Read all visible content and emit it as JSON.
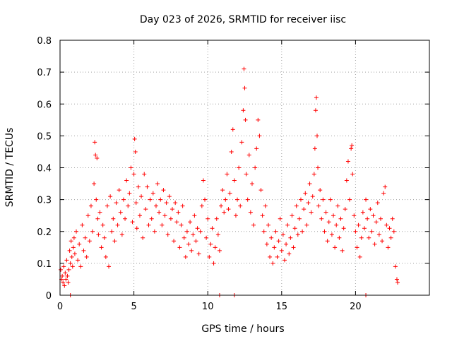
{
  "chart_data": {
    "type": "scatter",
    "title": "Day 023 of 2026, SRMTID for receiver iisc",
    "xlabel": "GPS time / hours",
    "ylabel": "SRMTID / TECUs",
    "xlim": [
      0,
      25
    ],
    "ylim": [
      0,
      0.8
    ],
    "x_ticks": [
      0,
      5,
      10,
      15,
      20
    ],
    "x_tick_labels": [
      "0",
      "5",
      "10",
      "15",
      "20"
    ],
    "y_ticks": [
      0,
      0.1,
      0.2,
      0.3,
      0.4,
      0.5,
      0.6,
      0.7,
      0.8
    ],
    "y_tick_labels": [
      "0",
      "0.1",
      "0.2",
      "0.3",
      "0.4",
      "0.5",
      "0.6",
      "0.7",
      "0.8"
    ],
    "grid": true,
    "marker": "+",
    "color": "#ff0000",
    "series": [
      {
        "name": "SRMTID",
        "points": [
          [
            0.05,
            0.08
          ],
          [
            0.1,
            0.05
          ],
          [
            0.15,
            0.06
          ],
          [
            0.2,
            0.04
          ],
          [
            0.25,
            0.09
          ],
          [
            0.3,
            0.03
          ],
          [
            0.35,
            0.07
          ],
          [
            0.4,
            0.05
          ],
          [
            0.45,
            0.11
          ],
          [
            0.5,
            0.06
          ],
          [
            0.55,
            0.04
          ],
          [
            0.6,
            0.08
          ],
          [
            0.65,
            0.14
          ],
          [
            0.7,
            0.1
          ],
          [
            0.75,
            0.17
          ],
          [
            0.8,
            0.12
          ],
          [
            0.85,
            0.09
          ],
          [
            0.9,
            0.15
          ],
          [
            0.95,
            0.18
          ],
          [
            1.0,
            0.13
          ],
          [
            1.1,
            0.2
          ],
          [
            1.2,
            0.11
          ],
          [
            1.3,
            0.16
          ],
          [
            1.4,
            0.09
          ],
          [
            1.5,
            0.22
          ],
          [
            1.6,
            0.14
          ],
          [
            1.7,
            0.18
          ],
          [
            1.8,
            0.12
          ],
          [
            1.9,
            0.25
          ],
          [
            2.0,
            0.17
          ],
          [
            2.1,
            0.28
          ],
          [
            2.2,
            0.2
          ],
          [
            2.3,
            0.35
          ],
          [
            2.35,
            0.48
          ],
          [
            2.4,
            0.44
          ],
          [
            2.45,
            0.3
          ],
          [
            2.5,
            0.43
          ],
          [
            2.55,
            0.24
          ],
          [
            2.6,
            0.19
          ],
          [
            2.7,
            0.26
          ],
          [
            2.8,
            0.15
          ],
          [
            2.9,
            0.22
          ],
          [
            3.0,
            0.18
          ],
          [
            3.1,
            0.12
          ],
          [
            3.2,
            0.28
          ],
          [
            3.3,
            0.09
          ],
          [
            3.4,
            0.31
          ],
          [
            3.5,
            0.2
          ],
          [
            3.6,
            0.24
          ],
          [
            3.7,
            0.17
          ],
          [
            3.8,
            0.29
          ],
          [
            3.9,
            0.22
          ],
          [
            4.0,
            0.33
          ],
          [
            4.1,
            0.26
          ],
          [
            4.2,
            0.19
          ],
          [
            4.3,
            0.3
          ],
          [
            4.4,
            0.24
          ],
          [
            4.5,
            0.36
          ],
          [
            4.6,
            0.28
          ],
          [
            4.7,
            0.32
          ],
          [
            4.8,
            0.4
          ],
          [
            4.9,
            0.23
          ],
          [
            5.0,
            0.38
          ],
          [
            5.05,
            0.49
          ],
          [
            5.1,
            0.45
          ],
          [
            5.15,
            0.29
          ],
          [
            5.2,
            0.21
          ],
          [
            5.3,
            0.34
          ],
          [
            5.4,
            0.25
          ],
          [
            5.5,
            0.31
          ],
          [
            5.6,
            0.18
          ],
          [
            5.7,
            0.38
          ],
          [
            5.8,
            0.27
          ],
          [
            5.9,
            0.34
          ],
          [
            6.0,
            0.22
          ],
          [
            6.1,
            0.3
          ],
          [
            6.2,
            0.24
          ],
          [
            6.3,
            0.32
          ],
          [
            6.4,
            0.2
          ],
          [
            6.5,
            0.28
          ],
          [
            6.6,
            0.35
          ],
          [
            6.7,
            0.26
          ],
          [
            6.8,
            0.3
          ],
          [
            6.9,
            0.22
          ],
          [
            7.0,
            0.33
          ],
          [
            7.1,
            0.25
          ],
          [
            7.2,
            0.29
          ],
          [
            7.3,
            0.19
          ],
          [
            7.4,
            0.31
          ],
          [
            7.5,
            0.24
          ],
          [
            7.6,
            0.27
          ],
          [
            7.7,
            0.17
          ],
          [
            7.8,
            0.29
          ],
          [
            7.9,
            0.23
          ],
          [
            8.0,
            0.26
          ],
          [
            8.1,
            0.15
          ],
          [
            8.2,
            0.22
          ],
          [
            8.3,
            0.28
          ],
          [
            8.4,
            0.18
          ],
          [
            8.5,
            0.12
          ],
          [
            8.6,
            0.2
          ],
          [
            8.7,
            0.16
          ],
          [
            8.8,
            0.23
          ],
          [
            8.9,
            0.14
          ],
          [
            9.0,
            0.19
          ],
          [
            9.1,
            0.25
          ],
          [
            9.2,
            0.17
          ],
          [
            9.3,
            0.21
          ],
          [
            9.4,
            0.13
          ],
          [
            9.5,
            0.2
          ],
          [
            9.6,
            0.28
          ],
          [
            9.7,
            0.36
          ],
          [
            9.8,
            0.3
          ],
          [
            9.9,
            0.18
          ],
          [
            10.0,
            0.24
          ],
          [
            10.1,
            0.12
          ],
          [
            10.2,
            0.16
          ],
          [
            10.3,
            0.21
          ],
          [
            10.4,
            0.1
          ],
          [
            10.5,
            0.15
          ],
          [
            10.6,
            0.24
          ],
          [
            10.7,
            0.19
          ],
          [
            10.8,
            0.14
          ],
          [
            10.9,
            0.28
          ],
          [
            11.0,
            0.33
          ],
          [
            11.1,
            0.26
          ],
          [
            11.2,
            0.3
          ],
          [
            11.3,
            0.38
          ],
          [
            11.4,
            0.27
          ],
          [
            11.5,
            0.32
          ],
          [
            11.6,
            0.45
          ],
          [
            11.7,
            0.52
          ],
          [
            11.8,
            0.36
          ],
          [
            11.9,
            0.25
          ],
          [
            12.0,
            0.3
          ],
          [
            12.1,
            0.4
          ],
          [
            12.2,
            0.28
          ],
          [
            12.3,
            0.48
          ],
          [
            12.4,
            0.58
          ],
          [
            12.45,
            0.71
          ],
          [
            12.5,
            0.65
          ],
          [
            12.55,
            0.55
          ],
          [
            12.6,
            0.38
          ],
          [
            12.7,
            0.3
          ],
          [
            12.8,
            0.44
          ],
          [
            12.9,
            0.26
          ],
          [
            13.0,
            0.35
          ],
          [
            13.1,
            0.22
          ],
          [
            13.2,
            0.4
          ],
          [
            13.3,
            0.46
          ],
          [
            13.4,
            0.55
          ],
          [
            13.5,
            0.5
          ],
          [
            13.6,
            0.33
          ],
          [
            13.7,
            0.25
          ],
          [
            13.8,
            0.2
          ],
          [
            13.9,
            0.28
          ],
          [
            14.0,
            0.16
          ],
          [
            14.1,
            0.22
          ],
          [
            14.2,
            0.12
          ],
          [
            14.3,
            0.18
          ],
          [
            14.4,
            0.1
          ],
          [
            14.5,
            0.15
          ],
          [
            14.6,
            0.2
          ],
          [
            14.7,
            0.12
          ],
          [
            14.8,
            0.17
          ],
          [
            14.9,
            0.24
          ],
          [
            15.0,
            0.14
          ],
          [
            15.1,
            0.19
          ],
          [
            15.2,
            0.11
          ],
          [
            15.3,
            0.16
          ],
          [
            15.4,
            0.22
          ],
          [
            15.5,
            0.13
          ],
          [
            15.6,
            0.18
          ],
          [
            15.7,
            0.25
          ],
          [
            15.8,
            0.15
          ],
          [
            15.9,
            0.21
          ],
          [
            16.0,
            0.28
          ],
          [
            16.1,
            0.19
          ],
          [
            16.2,
            0.24
          ],
          [
            16.3,
            0.3
          ],
          [
            16.4,
            0.2
          ],
          [
            16.5,
            0.27
          ],
          [
            16.6,
            0.32
          ],
          [
            16.7,
            0.22
          ],
          [
            16.8,
            0.29
          ],
          [
            16.9,
            0.35
          ],
          [
            17.0,
            0.26
          ],
          [
            17.1,
            0.31
          ],
          [
            17.2,
            0.38
          ],
          [
            17.25,
            0.46
          ],
          [
            17.3,
            0.58
          ],
          [
            17.35,
            0.62
          ],
          [
            17.4,
            0.5
          ],
          [
            17.45,
            0.4
          ],
          [
            17.5,
            0.28
          ],
          [
            17.6,
            0.33
          ],
          [
            17.7,
            0.24
          ],
          [
            17.8,
            0.3
          ],
          [
            17.9,
            0.2
          ],
          [
            18.0,
            0.26
          ],
          [
            18.1,
            0.17
          ],
          [
            18.2,
            0.23
          ],
          [
            18.3,
            0.3
          ],
          [
            18.4,
            0.19
          ],
          [
            18.5,
            0.25
          ],
          [
            18.6,
            0.15
          ],
          [
            18.7,
            0.22
          ],
          [
            18.8,
            0.28
          ],
          [
            18.9,
            0.18
          ],
          [
            19.0,
            0.24
          ],
          [
            19.1,
            0.14
          ],
          [
            19.2,
            0.21
          ],
          [
            19.3,
            0.27
          ],
          [
            19.4,
            0.36
          ],
          [
            19.5,
            0.42
          ],
          [
            19.6,
            0.3
          ],
          [
            19.7,
            0.46
          ],
          [
            19.75,
            0.47
          ],
          [
            19.8,
            0.38
          ],
          [
            19.9,
            0.25
          ],
          [
            20.0,
            0.2
          ],
          [
            20.1,
            0.15
          ],
          [
            20.2,
            0.22
          ],
          [
            20.3,
            0.12
          ],
          [
            20.4,
            0.18
          ],
          [
            20.5,
            0.26
          ],
          [
            20.6,
            0.21
          ],
          [
            20.7,
            0.3
          ],
          [
            20.8,
            0.24
          ],
          [
            20.9,
            0.18
          ],
          [
            21.0,
            0.27
          ],
          [
            21.1,
            0.2
          ],
          [
            21.2,
            0.25
          ],
          [
            21.3,
            0.16
          ],
          [
            21.4,
            0.23
          ],
          [
            21.5,
            0.29
          ],
          [
            21.6,
            0.19
          ],
          [
            21.7,
            0.24
          ],
          [
            21.8,
            0.17
          ],
          [
            21.9,
            0.32
          ],
          [
            22.0,
            0.34
          ],
          [
            22.1,
            0.22
          ],
          [
            22.2,
            0.15
          ],
          [
            22.3,
            0.21
          ],
          [
            22.4,
            0.18
          ],
          [
            22.5,
            0.24
          ],
          [
            22.6,
            0.2
          ],
          [
            22.7,
            0.09
          ],
          [
            22.8,
            0.05
          ],
          [
            22.85,
            0.04
          ],
          [
            0.7,
            0.0
          ],
          [
            10.8,
            0.0
          ],
          [
            11.8,
            0.0
          ],
          [
            20.7,
            0.0
          ]
        ]
      }
    ]
  }
}
